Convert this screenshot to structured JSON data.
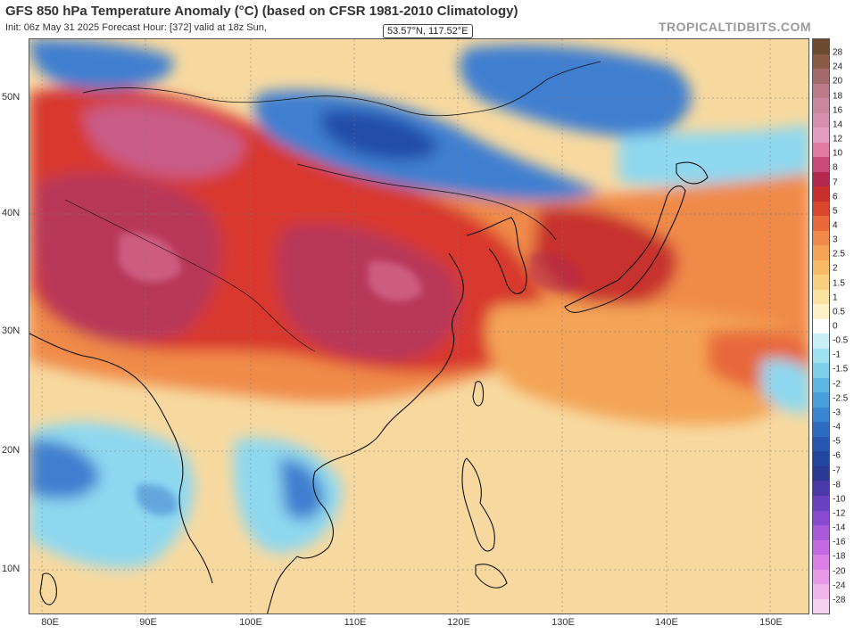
{
  "header": {
    "title": "GFS 850 hPa Temperature Anomaly (°C) (based on CFSR 1981-2010 Climatology)",
    "subtitle": "Init: 06z May 31 2025   Forecast Hour: [372]   valid at 18z Sun,",
    "brand": "TROPICALTIDBITS.COM"
  },
  "tooltip": {
    "text": "53.57°N, 117.52°E"
  },
  "map": {
    "lat_labels": [
      "50N",
      "40N",
      "30N",
      "20N",
      "10N"
    ],
    "lon_labels": [
      "80E",
      "90E",
      "100E",
      "110E",
      "120E",
      "130E",
      "140E",
      "150E"
    ],
    "colors": {
      "ocean_warm": "#f7d9a0",
      "warm": "#f08a4a",
      "hot": "#d8382e",
      "very_hot": "#b8385a",
      "extreme": "#c95b86",
      "cool": "#8ed8f0",
      "cold": "#3f7fd0",
      "very_cold": "#244ea8",
      "coast": "#111111"
    }
  },
  "colorbar": {
    "labels": [
      "28",
      "24",
      "20",
      "18",
      "16",
      "14",
      "12",
      "10",
      "8",
      "7",
      "6",
      "5",
      "4",
      "3",
      "2.5",
      "2",
      "1.5",
      "1",
      "0.5",
      "0",
      "-0.5",
      "-1",
      "-1.5",
      "-2",
      "-2.5",
      "-3",
      "-4",
      "-5",
      "-6",
      "-7",
      "-8",
      "-10",
      "-12",
      "-14",
      "-16",
      "-18",
      "-20",
      "-24",
      "-28"
    ],
    "colors": [
      "#6b4a2e",
      "#8a5a45",
      "#a46a6a",
      "#bb7a8a",
      "#c9869f",
      "#d78fb0",
      "#e39ec0",
      "#e07aa0",
      "#c84a78",
      "#b3284e",
      "#c8302e",
      "#d9482e",
      "#e8683a",
      "#f08a4a",
      "#f4a457",
      "#f7bb68",
      "#f9cf80",
      "#fbe1a0",
      "#fdf1c8",
      "#ffffff",
      "#c9eef6",
      "#9ee0f0",
      "#7dcfea",
      "#5fb8e4",
      "#4aa0dc",
      "#3a86d0",
      "#2e6cc0",
      "#2756ae",
      "#2346a0",
      "#2a3a95",
      "#4a3aa8",
      "#6a42c0",
      "#8a4ad0",
      "#a85ad8",
      "#c46ae0",
      "#d880e4",
      "#e69ae8",
      "#f0b6ec",
      "#f7d2f0"
    ]
  }
}
